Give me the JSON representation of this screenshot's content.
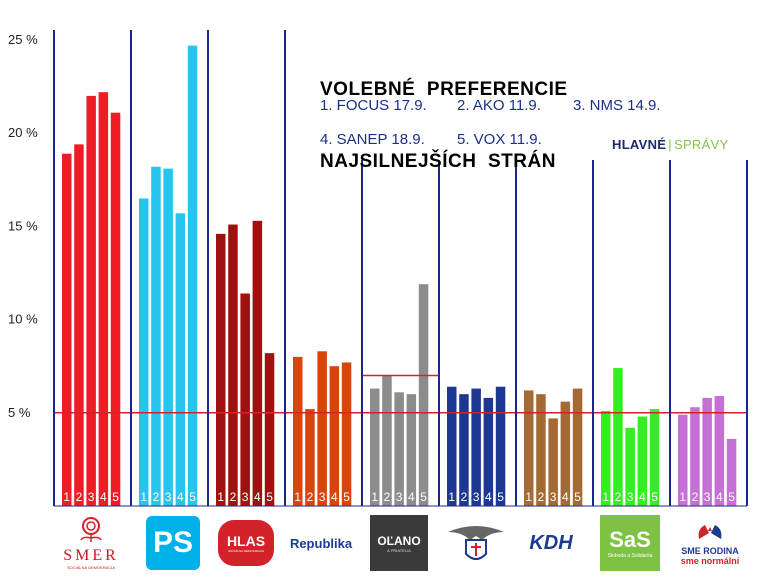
{
  "title_line1": "VOLEBNÉ  PREFERENCIE",
  "title_line2": "NAJSILNEJŠÍCH  STRÁN",
  "legend": [
    {
      "label": "1. FOCUS 17.9."
    },
    {
      "label": "2. AKO 11.9."
    },
    {
      "label": "3. NMS 14.9."
    },
    {
      "label": "4. SANEP 18.9."
    },
    {
      "label": "5. VOX 11.9."
    }
  ],
  "brand": {
    "part1": "HLAVNÉ",
    "part2": "SPRÁVY"
  },
  "logos": {
    "smer": "SMER",
    "smer_sub": "SOCIÁLNA DEMOKRACIA",
    "ps": "PS",
    "hlas": "HLAS",
    "hlas_sub": "SOCIÁLNA DEMOKRACIA",
    "republika": "Republika",
    "olano": "OĽANO",
    "olano_sub": "A PRIATELIA",
    "kdh": "KDH",
    "sas": "SaS",
    "sas_sub": "Sloboda a Solidarita",
    "rodina1": "SME RODINA",
    "rodina2": "sme normální"
  },
  "chart_data": {
    "type": "bar",
    "title": "VOLEBNÉ PREFERENCIE NAJSILNEJŠÍCH STRÁN",
    "ylim": [
      0,
      25
    ],
    "yticks": [
      {
        "v": 5,
        "label": "5 %"
      },
      {
        "v": 10,
        "label": "10 %"
      },
      {
        "v": 15,
        "label": "15 %"
      },
      {
        "v": 20,
        "label": "20 %"
      },
      {
        "v": 25,
        "label": "25 %"
      }
    ],
    "threshold": 5,
    "bar_labels": [
      "1",
      "2",
      "3",
      "4",
      "5"
    ],
    "parties": [
      {
        "name": "SMER",
        "color": "#ee1c24",
        "values": [
          18.9,
          19.4,
          22.0,
          22.2,
          21.1
        ]
      },
      {
        "name": "PS",
        "color": "#27c4f0",
        "values": [
          16.5,
          18.2,
          18.1,
          15.7,
          24.7
        ]
      },
      {
        "name": "HLAS",
        "color": "#a01010",
        "values": [
          14.6,
          15.1,
          11.4,
          15.3,
          8.2
        ]
      },
      {
        "name": "Republika",
        "color": "#d9440b",
        "values": [
          8.0,
          5.2,
          8.3,
          7.5,
          7.7
        ]
      },
      {
        "name": "OĽANO",
        "color": "#8c8c8c",
        "values": [
          6.3,
          7.0,
          6.1,
          6.0,
          11.9
        ],
        "threshold": 7
      },
      {
        "name": "SNS",
        "color": "#1e3790",
        "values": [
          6.4,
          6.0,
          6.3,
          5.8,
          6.4
        ]
      },
      {
        "name": "KDH",
        "color": "#a36a35",
        "values": [
          6.2,
          6.0,
          4.7,
          5.6,
          6.3
        ]
      },
      {
        "name": "SaS",
        "color": "#33ee22",
        "values": [
          5.1,
          7.4,
          4.2,
          4.8,
          5.2
        ]
      },
      {
        "name": "SME RODINA",
        "color": "#c66fd6",
        "values": [
          4.9,
          5.3,
          5.8,
          5.9,
          3.6
        ]
      }
    ]
  }
}
